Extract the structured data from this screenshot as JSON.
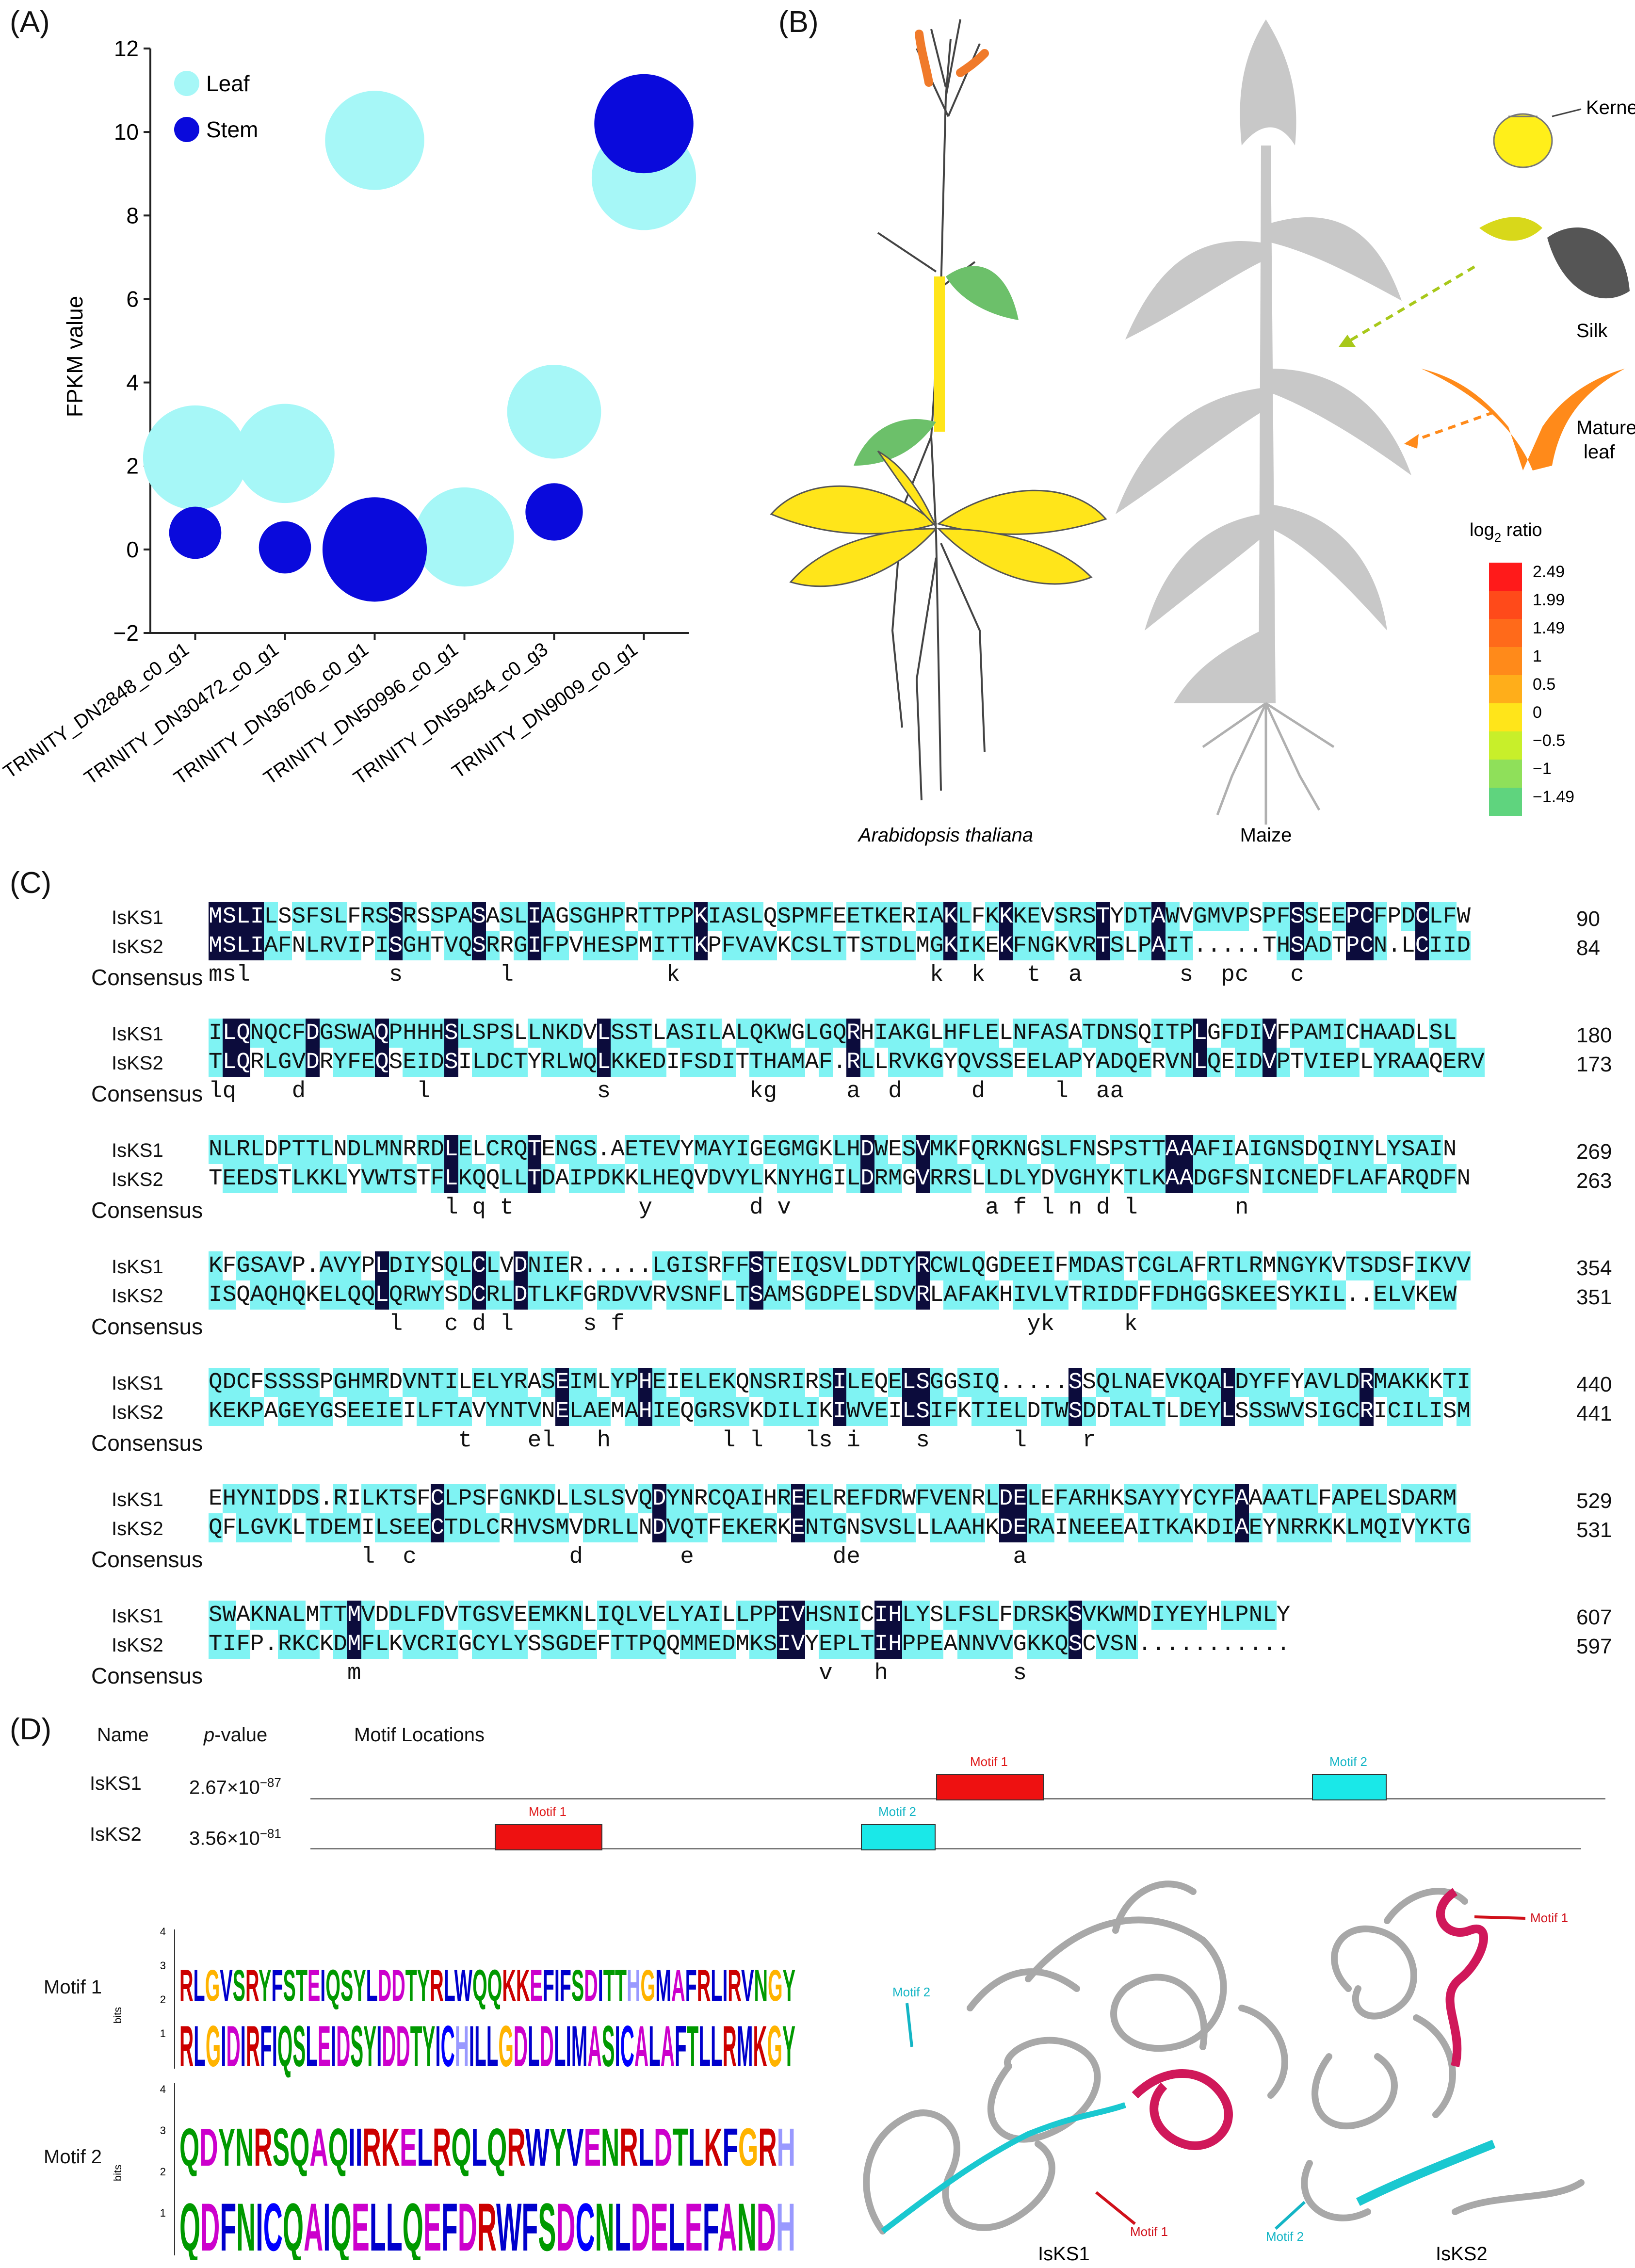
{
  "panels": {
    "a": "(A)",
    "b": "(B)",
    "c": "(C)",
    "d": "(D)"
  },
  "chart_data": {
    "type": "scatter",
    "ylabel": "FPKM value",
    "ylim": [
      -2,
      12
    ],
    "yticks": [
      "−2",
      "0",
      "2",
      "4",
      "6",
      "8",
      "10",
      "12"
    ],
    "categories": [
      "TRINITY_DN2848_c0_g1",
      "TRINITY_DN30472_c0_g1",
      "TRINITY_DN36706_c0_g1",
      "TRINITY_DN50996_c0_g1",
      "TRINITY_DN59454_c0_g3",
      "TRINITY_DN9009_c0_g1"
    ],
    "series": [
      {
        "name": "Leaf",
        "color": "#a6f7f7",
        "values": [
          2.2,
          2.3,
          9.8,
          0.3,
          3.3,
          8.9
        ],
        "sizes": [
          1.0,
          0.95,
          0.95,
          0.95,
          0.9,
          1.0
        ]
      },
      {
        "name": "Stem",
        "color": "#0a0adc",
        "values": [
          0.4,
          0.05,
          0.0,
          null,
          0.9,
          10.2
        ],
        "sizes": [
          0.5,
          0.5,
          1.0,
          null,
          0.55,
          0.95
        ]
      }
    ]
  },
  "panel_b": {
    "species1": "Arabidopsis thaliana",
    "species2": "Maize",
    "kernel": "Kernel",
    "silk": "Silk",
    "mature_leaf_1": "Mature",
    "mature_leaf_2": "leaf",
    "legend_title_base": "log",
    "legend_title_sub": "2",
    "legend_title_tail": " ratio",
    "legend": [
      {
        "label": "2.49",
        "color": "#ff1a1a"
      },
      {
        "label": "1.99",
        "color": "#ff4a1a"
      },
      {
        "label": "1.49",
        "color": "#ff6a1a"
      },
      {
        "label": "1",
        "color": "#ff8a1a"
      },
      {
        "label": "0.5",
        "color": "#ffae1a"
      },
      {
        "label": "0",
        "color": "#ffe51a"
      },
      {
        "label": "−0.5",
        "color": "#c8ef2a"
      },
      {
        "label": "−1",
        "color": "#8fe05a"
      },
      {
        "label": "−1.49",
        "color": "#5fd47e"
      }
    ]
  },
  "alignment": {
    "names": [
      "IsKS1",
      "IsKS2"
    ],
    "consensus_label": "Consensus",
    "blocks": [
      {
        "s1": "MSLILSSFSLFRSSRSSPASASLIAGSGHPRTTPPKIASLQSPMFEETKERIAKLFKKKEVSRSTYDTAWVGMVPSPFSSEEPCFPDCLFW",
        "s2": "MSLIAFNLRVIPISGHTVQSRRGIFPVHESPMITTKPFVAVKCSLTTSTDLMGKIKEKFNGKVRTSLPAIT.....THSADTPCN.LCIID",
        "cons": "msl          s       l           k                  k  k   t  a       s  pc   c   ",
        "n1": "90",
        "n2": "84"
      },
      {
        "s1": "ILQNQCFDGSWAQPHHHSLSPSLLNKDVLSSTLASILALQKWGLGQRHIAKGLHFLELNFASATDNSQITPLGFDIVFPAMICHAADLSL",
        "s2": "TLQRLGVDRYFEQSEIDSILDCTYRLWQLKKEDIFSDITTHAMAF.RLLRVKGYQVSSEELAPYADQERVNLQEIDVPTVIEPLYRAAQERV",
        "cons": "lq    d        l            s          kg     a  d     d     l  aa  ",
        "n1": "180",
        "n2": "173"
      },
      {
        "s1": "NLRLDPTTLNDLMNRRDLELCRQTENGS.AETEVYMAYIGEGMGKLHDWESVMKFQRKNGSLFNSPSTTAAAFIAIGNSDQINYLYSAIN",
        "s2": "TEEDSTLKKLYVWTSTFLKQQLLTDAIPDKKLHEQVDVYLKNYHGILDRMGVRRSLLDLYDVGHYKTLKAADGFSNICNEDFLAFARQDFN",
        "cons": "                 l q t         y       d v              a f l n d l       n",
        "n1": "269",
        "n2": "263"
      },
      {
        "s1": "KFGSAVP.AVYPLDIYSQLCLVDNIER.....LGISRFFSTEIQSVLDDTYRCWLQGDEEIFMDASTCGLAFRTLRMNGYKVTSDSFIKVV",
        "s2": "ISQAQHQKELQQLQRWYSDCRLDTLKFGRDVVRVSNFLTSAMSGDPELSDVRLAFAKHIVLVTRIDDFFDHGGSKEESYKIL..ELVKEW",
        "cons": "             l   c d l     s f                             yk     k ",
        "n1": "354",
        "n2": "351"
      },
      {
        "s1": "QDCFSSSSPGHMRDVNTILELYRASEIMLYPHEIELEKQNSRIRSILEQELSGGSIQ.....SSQLNAEVKQALDYFFYAVLDRMAKKKTI",
        "s2": "KEKPAGEYGSEEIEILFTAVYNTVNELAEMAHIEQGRSVKDILIKIWVEILSIFKTIELDTWSDDTALTLDEYLSSSWVSIGCRICILISM",
        "cons": "                  t    el   h        l l   ls i    s      l    r",
        "n1": "440",
        "n2": "441"
      },
      {
        "s1": "EHYNIDDS.RILKTSFCLPSFGNKDLLSLSVQDYNRCQAIHREELREFDRWFVENRLDELEFARHKSAYYYCYFAAAATLFAPELSDARM",
        "s2": "QFLGVKLTDEMILSEECTDLCRHVSMVDRLLNDVQTFEKERKENTGNSVSLLLAAHKDERAINEEEAITKAKDIAEYNRRKKLMQIVYKTG",
        "cons": "           l  c           d       e          de           a",
        "n1": "529",
        "n2": "531"
      },
      {
        "s1": "SWAKNALMTTMVDDLFDVTGSVEEMKNLIQLVELYAILLPPIVHSNICIHLYSLFSLFDRSKSVKWMDIYEYHLPNLY",
        "s2": "TIFP.RKCKDMFLKVCRIGCYLYSSGDEFTTPQQMMEDMKSIVYEPLTIHPPEANNVVGKKQSCVSN...........",
        "cons": "          m                                 v   h         s",
        "n1": "607",
        "n2": "597"
      }
    ]
  },
  "panel_d": {
    "col_name": "Name",
    "col_p": "p",
    "col_p_tail": "-value",
    "col_motif": "Motif Locations",
    "rows": [
      {
        "name": "IsKS1",
        "p_base": "2.67×10",
        "p_exp": "−87",
        "motif1": "Motif 1",
        "motif2": "Motif 2"
      },
      {
        "name": "IsKS2",
        "p_base": "3.56×10",
        "p_exp": "−81",
        "motif1": "Motif 1",
        "motif2": "Motif 2"
      }
    ],
    "logo1_label": "Motif 1",
    "logo2_label": "Motif 2",
    "bits": "bits",
    "logo_ticks": [
      "4",
      "3",
      "2",
      "1"
    ],
    "logo1_top": "RLGVSRYFSTEIQSYLDDTYRLWQQKKEFIFSDITTHGMAFRLIRVNGY",
    "logo1_bottom": "RLGIDIRFIQSLEIDSYIDDTYICHILLGDLDLIMASICALAFTLLRMKGY",
    "logo2_top": "QDYNRSQAQIIRKELRQLQRWYVENRLDTLKFGRH",
    "logo2_bottom": "QDFNICQAIQELLQEFDRWFSDCNLDELEFANDH",
    "struct1": "IsKS1",
    "struct2": "IsKS2",
    "struct_motif1": "Motif 1",
    "struct_motif2": "Motif 2"
  }
}
